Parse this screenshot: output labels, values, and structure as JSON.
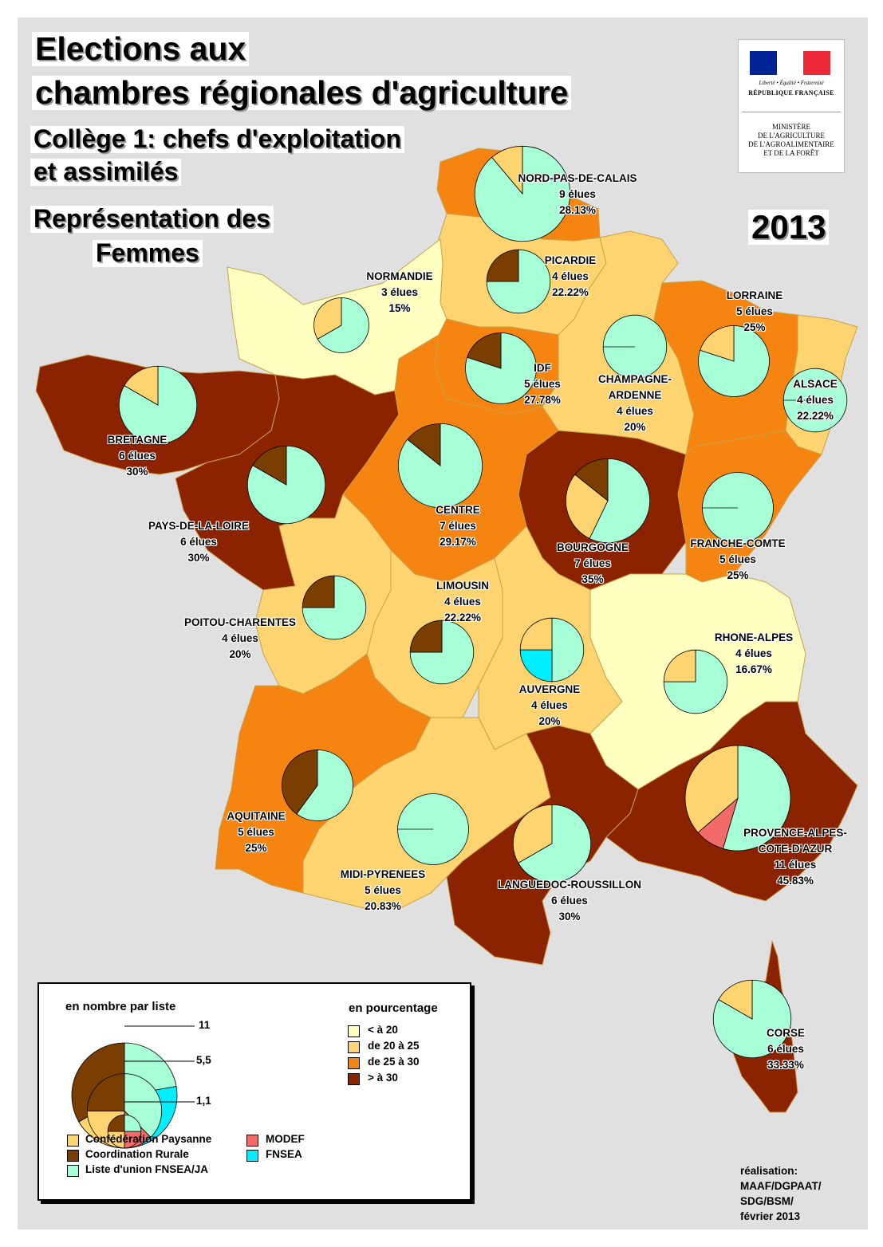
{
  "header": {
    "title_line1": "Elections aux",
    "title_line2": "chambres régionales d'agriculture",
    "college_line1": "Collège 1: chefs d'exploitation",
    "college_line2": "et assimilés",
    "representation_line1": "Représentation des",
    "representation_line2": "Femmes",
    "year": "2013"
  },
  "logo": {
    "devise": "Liberté • Égalité • Fraternité",
    "republique": "RÉPUBLIQUE FRANÇAISE",
    "ministere_line1": "MINISTÈRE",
    "ministere_line2": "DE L'AGRICULTURE",
    "ministere_line3": "DE L'AGROALIMENTAIRE",
    "ministere_line4": "ET DE LA FORÊT",
    "flag_colors": [
      "#002395",
      "#ffffff",
      "#ed2939"
    ]
  },
  "colors": {
    "class_lt20": "#ffffc0",
    "class_20_25": "#fdd46f",
    "class_25_30": "#f58410",
    "class_gt30": "#8b2200",
    "confederation_paysanne": "#fdd46f",
    "coordination_rurale": "#7a3e00",
    "liste_union": "#a6ffd6",
    "modef": "#f26a6a",
    "fnsea": "#00eeff"
  },
  "regions": [
    {
      "id": "nord-pas-de-calais",
      "name": "NORD-PAS-DE-CALAIS",
      "elues": "9 élues",
      "pct": "28.13%",
      "class": "25_30",
      "count": 9,
      "shares": {
        "cp": 1,
        "cr": 0,
        "union": 8,
        "modef": 0,
        "fnsea": 0
      }
    },
    {
      "id": "picardie",
      "name": "PICARDIE",
      "elues": "4 élues",
      "pct": "22.22%",
      "class": "20_25",
      "count": 4,
      "shares": {
        "cp": 0,
        "cr": 1,
        "union": 3,
        "modef": 0,
        "fnsea": 0
      }
    },
    {
      "id": "normandie",
      "name": "NORMANDIE",
      "elues": "3 élues",
      "pct": "15%",
      "class": "lt20",
      "count": 3,
      "shares": {
        "cp": 1,
        "cr": 0,
        "union": 2,
        "modef": 0,
        "fnsea": 0
      }
    },
    {
      "id": "lorraine",
      "name": "LORRAINE",
      "elues": "5 élues",
      "pct": "25%",
      "class": "25_30",
      "count": 5,
      "shares": {
        "cp": 1,
        "cr": 0,
        "union": 4,
        "modef": 0,
        "fnsea": 0
      }
    },
    {
      "id": "idf",
      "name": "IDF",
      "elues": "5 élues",
      "pct": "27.78%",
      "class": "25_30",
      "count": 5,
      "shares": {
        "cp": 0,
        "cr": 1,
        "union": 4,
        "modef": 0,
        "fnsea": 0
      }
    },
    {
      "id": "champagne-ardenne",
      "name_line1": "CHAMPAGNE-",
      "name": "ARDENNE",
      "elues": "4 élues",
      "pct": "20%",
      "class": "20_25",
      "count": 4,
      "shares": {
        "cp": 0,
        "cr": 0,
        "union": 4,
        "modef": 0,
        "fnsea": 0
      }
    },
    {
      "id": "alsace",
      "name": "ALSACE",
      "elues": "4 élues",
      "pct": "22.22%",
      "class": "20_25",
      "count": 4,
      "shares": {
        "cp": 0,
        "cr": 0,
        "union": 4,
        "modef": 0,
        "fnsea": 0
      }
    },
    {
      "id": "bretagne",
      "name": "BRETAGNE",
      "elues": "6 élues",
      "pct": "30%",
      "class": "gt30",
      "count": 6,
      "shares": {
        "cp": 1,
        "cr": 0,
        "union": 5,
        "modef": 0,
        "fnsea": 0
      }
    },
    {
      "id": "pays-de-la-loire",
      "name": "PAYS-DE-LA-LOIRE",
      "elues": "6 élues",
      "pct": "30%",
      "class": "gt30",
      "count": 6,
      "shares": {
        "cp": 0,
        "cr": 1,
        "union": 5,
        "modef": 0,
        "fnsea": 0
      }
    },
    {
      "id": "centre",
      "name": "CENTRE",
      "elues": "7 élues",
      "pct": "29.17%",
      "class": "25_30",
      "count": 7,
      "shares": {
        "cp": 0,
        "cr": 1,
        "union": 6,
        "modef": 0,
        "fnsea": 0
      }
    },
    {
      "id": "bourgogne",
      "name": "BOURGOGNE",
      "elues": "7 élues",
      "pct": "35%",
      "class": "gt30",
      "count": 7,
      "shares": {
        "cp": 2,
        "cr": 1,
        "union": 4,
        "modef": 0,
        "fnsea": 0
      }
    },
    {
      "id": "franche-comte",
      "name": "FRANCHE-COMTE",
      "elues": "5 élues",
      "pct": "25%",
      "class": "25_30",
      "count": 5,
      "shares": {
        "cp": 0,
        "cr": 0,
        "union": 5,
        "modef": 0,
        "fnsea": 0
      }
    },
    {
      "id": "limousin",
      "name": "LIMOUSIN",
      "elues": "4 élues",
      "pct": "22.22%",
      "class": "20_25",
      "count": 4,
      "shares": {
        "cp": 0,
        "cr": 1,
        "union": 3,
        "modef": 0,
        "fnsea": 0
      }
    },
    {
      "id": "poitou-charentes",
      "name": "POITOU-CHARENTES",
      "elues": "4 élues",
      "pct": "20%",
      "class": "20_25",
      "count": 4,
      "shares": {
        "cp": 0,
        "cr": 1,
        "union": 3,
        "modef": 0,
        "fnsea": 0
      }
    },
    {
      "id": "auvergne",
      "name": "AUVERGNE",
      "elues": "4 élues",
      "pct": "20%",
      "class": "20_25",
      "count": 4,
      "shares": {
        "cp": 1,
        "cr": 0,
        "union": 2,
        "modef": 0,
        "fnsea": 1
      }
    },
    {
      "id": "rhone-alpes",
      "name": "RHONE-ALPES",
      "elues": "4 élues",
      "pct": "16.67%",
      "class": "lt20",
      "count": 4,
      "shares": {
        "cp": 1,
        "cr": 0,
        "union": 3,
        "modef": 0,
        "fnsea": 0
      }
    },
    {
      "id": "aquitaine",
      "name": "AQUITAINE",
      "elues": "5 élues",
      "pct": "25%",
      "class": "25_30",
      "count": 5,
      "shares": {
        "cp": 0,
        "cr": 2,
        "union": 3,
        "modef": 0,
        "fnsea": 0
      }
    },
    {
      "id": "midi-pyrenees",
      "name": "MIDI-PYRENEES",
      "elues": "5 élues",
      "pct": "20.83%",
      "class": "20_25",
      "count": 5,
      "shares": {
        "cp": 0,
        "cr": 0,
        "union": 5,
        "modef": 0,
        "fnsea": 0
      }
    },
    {
      "id": "languedoc-roussillon",
      "name": "LANGUEDOC-ROUSSILLON",
      "elues": "6 élues",
      "pct": "30%",
      "class": "gt30",
      "count": 6,
      "shares": {
        "cp": 2,
        "cr": 0,
        "union": 4,
        "modef": 0,
        "fnsea": 0
      }
    },
    {
      "id": "paca",
      "name_line1": "PROVENCE-ALPES-",
      "name": "COTE-D'AZUR",
      "elues": "11 élues",
      "pct": "45.83%",
      "class": "gt30",
      "count": 11,
      "shares": {
        "cp": 4,
        "cr": 0,
        "union": 6,
        "modef": 1,
        "fnsea": 0
      }
    },
    {
      "id": "corse",
      "name": "CORSE",
      "elues": "6 élues",
      "pct": "33.33%",
      "class": "gt30",
      "count": 6,
      "shares": {
        "cp": 1,
        "cr": 0,
        "union": 5,
        "modef": 0,
        "fnsea": 0
      }
    }
  ],
  "legend": {
    "size_title": "en nombre par liste",
    "size_values": [
      "11",
      "5,5",
      "1,1"
    ],
    "pct_title": "en pourcentage",
    "pct_classes": [
      {
        "label": "< à 20",
        "color": "#ffffc0"
      },
      {
        "label": "de 20 à 25",
        "color": "#fdd46f"
      },
      {
        "label": "de 25 à 30",
        "color": "#f58410"
      },
      {
        "label": "> à 30",
        "color": "#8b2200"
      }
    ],
    "lists": [
      {
        "label": "Confédération Paysanne",
        "color": "#fdd46f"
      },
      {
        "label": "Coordination Rurale",
        "color": "#7a3e00"
      },
      {
        "label": "Liste d'union FNSEA/JA",
        "color": "#a6ffd6"
      },
      {
        "label": "MODEF",
        "color": "#f26a6a"
      },
      {
        "label": "FNSEA",
        "color": "#00eeff"
      }
    ]
  },
  "credit": {
    "line1": "réalisation:",
    "line2": "MAAF/DGPAAT/",
    "line3": "SDG/BSM/",
    "line4": "février 2013"
  }
}
